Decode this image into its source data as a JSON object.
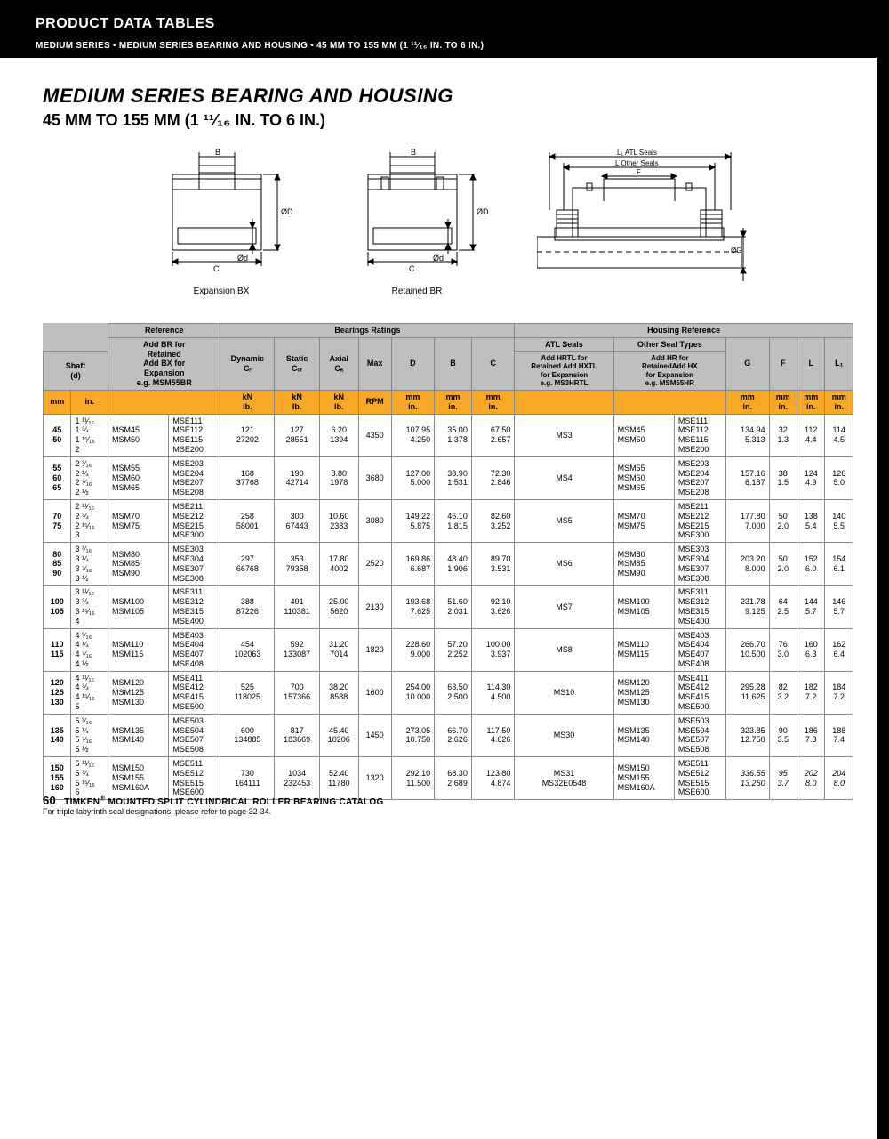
{
  "header": {
    "title": "PRODUCT DATA TABLES",
    "sub": "MEDIUM SERIES • MEDIUM SERIES BEARING AND HOUSING • 45 MM TO 155 MM (1 ¹¹⁄₁₆ IN. TO 6 IN.)"
  },
  "section": {
    "title": "MEDIUM SERIES BEARING AND HOUSING",
    "sub": "45 MM TO 155 MM (1 ¹¹⁄₁₆ IN. TO 6 IN.)"
  },
  "diagram_labels": {
    "a": "Expansion BX",
    "b": "Retained  BR"
  },
  "diagram_annotations": {
    "B": "B",
    "C": "C",
    "OD": "ØD",
    "Od": "Ød",
    "L1": "L₁ ATL Seals",
    "L": "L Other Seals",
    "F": "F",
    "OG": "ØG"
  },
  "table": {
    "headers": {
      "ref": "Reference",
      "bratings": "Bearings Ratings",
      "href": "Housing Reference",
      "shaft": "Shaft\n(d)",
      "br_note": "Add BR for\nRetained\nAdd BX for\nExpansion\ne.g. MSM55BR",
      "dyn": "Dynamic\nCᵣ",
      "stat": "Static\nCₒᵣ",
      "axial": "Axial\nCₐ",
      "max": "Max",
      "D": "D",
      "B": "B",
      "C": "C",
      "atl": "ATL Seals",
      "other": "Other Seal Types",
      "atl_note": "Add HRTL for\nRetained Add HXTL\nfor Expansion\ne.g. MS3HRTL",
      "other_note": "Add HR for\nRetainedAdd HX\nfor Expansion\ne.g. MSM55HR",
      "G": "G",
      "F": "F",
      "L": "L",
      "L1": "L₁"
    },
    "units": {
      "mm": "mm",
      "in": "in.",
      "kn": "kN\nlb.",
      "rpm": "RPM",
      "mmin": "mm\nin."
    },
    "rows": [
      {
        "shaft_mm": "45\n50",
        "shaft_in": "1 ¹¹⁄₁₆\n1 ¾\n1 ¹⁵⁄₁₆\n2",
        "ref1": "MSM45\nMSM50",
        "ref2": "MSE111\nMSE112\nMSE115\nMSE200",
        "dyn": "121\n27202",
        "stat": "127\n28551",
        "ax": "6.20\n1394",
        "rpm": "4350",
        "D": "107.95\n4.250",
        "B": "35.00\n1.378",
        "C": "67.50\n2.657",
        "atl": "MS3",
        "oth1": "MSM45\nMSM50",
        "oth2": "MSE111\nMSE112\nMSE115\nMSE200",
        "G": "134.94\n5.313",
        "F": "32\n1.3",
        "L": "112\n4.4",
        "L1": "114\n4.5"
      },
      {
        "shaft_mm": "55\n60\n65",
        "shaft_in": "2 ³⁄₁₆\n2 ¼\n2 ⁷⁄₁₆\n2 ½",
        "ref1": "MSM55\nMSM60\nMSM65",
        "ref2": "MSE203\nMSE204\nMSE207\nMSE208",
        "dyn": "168\n37768",
        "stat": "190\n42714",
        "ax": "8.80\n1978",
        "rpm": "3680",
        "D": "127.00\n5.000",
        "B": "38.90\n1.531",
        "C": "72.30\n2.846",
        "atl": "MS4",
        "oth1": "MSM55\nMSM60\nMSM65",
        "oth2": "MSE203\nMSE204\nMSE207\nMSE208",
        "G": "157.16\n6.187",
        "F": "38\n1.5",
        "L": "124\n4.9",
        "L1": "126\n5.0"
      },
      {
        "shaft_mm": "70\n75",
        "shaft_in": "2 ¹¹⁄₁₆\n2 ¾\n2 ¹⁵⁄₁₆\n3",
        "ref1": "MSM70\nMSM75",
        "ref2": "MSE211\nMSE212\nMSE215\nMSE300",
        "dyn": "258\n58001",
        "stat": "300\n67443",
        "ax": "10.60\n2383",
        "rpm": "3080",
        "D": "149.22\n5.875",
        "B": "46.10\n1.815",
        "C": "82.60\n3.252",
        "atl": "MS5",
        "oth1": "MSM70\nMSM75",
        "oth2": "MSE211\nMSE212\nMSE215\nMSE300",
        "G": "177.80\n7.000",
        "F": "50\n2.0",
        "L": "138\n5.4",
        "L1": "140\n5.5"
      },
      {
        "shaft_mm": "80\n85\n90",
        "shaft_in": "3 ³⁄₁₆\n3 ¼\n3 ⁷⁄₁₆\n3 ½",
        "ref1": "MSM80\nMSM85\nMSM90",
        "ref2": "MSE303\nMSE304\nMSE307\nMSE308",
        "dyn": "297\n66768",
        "stat": "353\n79358",
        "ax": "17.80\n4002",
        "rpm": "2520",
        "D": "169.86\n6.687",
        "B": "48.40\n1.906",
        "C": "89.70\n3.531",
        "atl": "MS6",
        "oth1": "MSM80\nMSM85\nMSM90",
        "oth2": "MSE303\nMSE304\nMSE307\nMSE308",
        "G": "203.20\n8.000",
        "F": "50\n2.0",
        "L": "152\n6.0",
        "L1": "154\n6.1"
      },
      {
        "shaft_mm": "100\n105",
        "shaft_in": "3 ¹¹⁄₁₆\n3 ¾\n3 ¹⁵⁄₁₆\n4",
        "ref1": "MSM100\nMSM105",
        "ref2": "MSE311\nMSE312\nMSE315\nMSE400",
        "dyn": "388\n87226",
        "stat": "491\n110381",
        "ax": "25.00\n5620",
        "rpm": "2130",
        "D": "193.68\n7.625",
        "B": "51.60\n2.031",
        "C": "92.10\n3.626",
        "atl": "MS7",
        "oth1": "MSM100\nMSM105",
        "oth2": "MSE311\nMSE312\nMSE315\nMSE400",
        "G": "231.78\n9.125",
        "F": "64\n2.5",
        "L": "144\n5.7",
        "L1": "146\n5.7"
      },
      {
        "shaft_mm": "110\n115",
        "shaft_in": "4 ³⁄₁₆\n4 ¼\n4 ⁷⁄₁₆\n4 ½",
        "ref1": "MSM110\nMSM115",
        "ref2": "MSE403\nMSE404\nMSE407\nMSE408",
        "dyn": "454\n102063",
        "stat": "592\n133087",
        "ax": "31.20\n7014",
        "rpm": "1820",
        "D": "228.60\n9.000",
        "B": "57.20\n2.252",
        "C": "100.00\n3.937",
        "atl": "MS8",
        "oth1": "MSM110\nMSM115",
        "oth2": "MSE403\nMSE404\nMSE407\nMSE408",
        "G": "266.70\n10.500",
        "F": "76\n3.0",
        "L": "160\n6.3",
        "L1": "162\n6.4"
      },
      {
        "shaft_mm": "120\n125\n130",
        "shaft_in": "4 ¹¹⁄₁₆\n4 ¾\n4 ¹⁵⁄₁₆\n5",
        "ref1": "MSM120\nMSM125\nMSM130",
        "ref2": "MSE411\nMSE412\nMSE415\nMSE500",
        "dyn": "525\n118025",
        "stat": "700\n157366",
        "ax": "38.20\n8588",
        "rpm": "1600",
        "D": "254.00\n10.000",
        "B": "63.50\n2.500",
        "C": "114.30\n4.500",
        "atl": "MS10",
        "oth1": "MSM120\nMSM125\nMSM130",
        "oth2": "MSE411\nMSE412\nMSE415\nMSE500",
        "G": "295.28\n11.625",
        "F": "82\n3.2",
        "L": "182\n7.2",
        "L1": "184\n7.2"
      },
      {
        "shaft_mm": "135\n140",
        "shaft_in": "5 ³⁄₁₆\n5 ¼\n5 ⁷⁄₁₆\n5 ½",
        "ref1": "MSM135\nMSM140",
        "ref2": "MSE503\nMSE504\nMSE507\nMSE508",
        "dyn": "600\n134885",
        "stat": "817\n183669",
        "ax": "45.40\n10206",
        "rpm": "1450",
        "D": "273.05\n10.750",
        "B": "66.70\n2.626",
        "C": "117.50\n4.626",
        "atl": "MS30",
        "oth1": "MSM135\nMSM140",
        "oth2": "MSE503\nMSE504\nMSE507\nMSE508",
        "G": "323.85\n12.750",
        "F": "90\n3.5",
        "L": "186\n7.3",
        "L1": "188\n7.4"
      },
      {
        "shaft_mm": "150\n155\n160",
        "shaft_in": "5 ¹¹⁄₁₆\n5 ¾\n5 ¹⁵⁄₁₆\n6",
        "ref1": "MSM150\nMSM155\nMSM160A",
        "ref2": "MSE511\nMSE512\nMSE515\nMSE600",
        "dyn": "730\n164111",
        "stat": "1034\n232453",
        "ax": "52.40\n11780",
        "rpm": "1320",
        "D": "292.10\n11.500",
        "B": "68.30\n2.689",
        "C": "123.80\n4.874",
        "atl": "MS31\nMS32E0548",
        "oth1": "MSM150\nMSM155\nMSM160A",
        "oth2": "MSE511\nMSE512\nMSE515\nMSE600",
        "G": "336.55\n13.250",
        "F": "95\n3.7",
        "L": "202\n8.0",
        "L1": "204\n8.0"
      }
    ]
  },
  "footnote": "For triple labyrinth seal designations, please refer to page 32-34.",
  "footer": {
    "page": "60",
    "text": "TIMKEN® MOUNTED SPLIT CYLINDRICAL ROLLER BEARING CATALOG"
  }
}
